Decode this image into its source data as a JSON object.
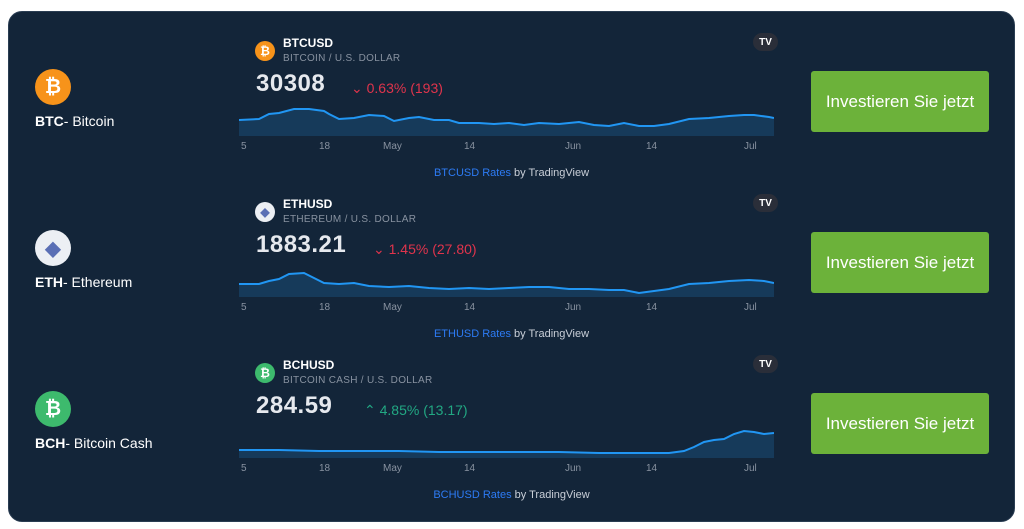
{
  "colors": {
    "background": "#132539",
    "button": "#6cb23a",
    "link": "#2d7bf4",
    "down": "#e0344c",
    "up": "#22a883",
    "chart_line": "#2196f3",
    "btc": "#f7931a",
    "eth": "#eceff4",
    "bch": "#3dba6d"
  },
  "axis_labels": [
    "5",
    "18",
    "May",
    "14",
    "Jun",
    "14",
    "Jul"
  ],
  "button_label": "Investieren Sie jetzt",
  "attribution_suffix": " by TradingView",
  "rows": [
    {
      "coin_ticker": "BTC",
      "coin_name": "- Bitcoin",
      "icon": "bitcoin-icon",
      "glyph": "₿",
      "symbol": "BTCUSD",
      "description": "BITCOIN / U.S. DOLLAR",
      "price": "30308",
      "change": "0.63% (193)",
      "direction": "down",
      "attribution_link": "BTCUSD Rates",
      "tv_logo": "TV"
    },
    {
      "coin_ticker": "ETH",
      "coin_name": "- Ethereum",
      "icon": "ethereum-icon",
      "glyph": "◆",
      "symbol": "ETHUSD",
      "description": "ETHEREUM / U.S. DOLLAR",
      "price": "1883.21",
      "change": "1.45% (27.80)",
      "direction": "down",
      "attribution_link": "ETHUSD Rates",
      "tv_logo": "TV"
    },
    {
      "coin_ticker": "BCH",
      "coin_name": "- Bitcoin Cash",
      "icon": "bitcoin-cash-icon",
      "glyph": "₿",
      "symbol": "BCHUSD",
      "description": "BITCOIN CASH / U.S. DOLLAR",
      "price": "284.59",
      "change": "4.85% (13.17)",
      "direction": "up",
      "attribution_link": "BCHUSD Rates",
      "tv_logo": "TV"
    }
  ]
}
